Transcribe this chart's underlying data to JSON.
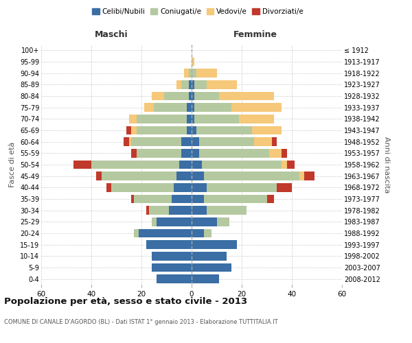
{
  "age_groups": [
    "0-4",
    "5-9",
    "10-14",
    "15-19",
    "20-24",
    "25-29",
    "30-34",
    "35-39",
    "40-44",
    "45-49",
    "50-54",
    "55-59",
    "60-64",
    "65-69",
    "70-74",
    "75-79",
    "80-84",
    "85-89",
    "90-94",
    "95-99",
    "100+"
  ],
  "birth_years": [
    "2008-2012",
    "2003-2007",
    "1998-2002",
    "1993-1997",
    "1988-1992",
    "1983-1987",
    "1978-1982",
    "1973-1977",
    "1968-1972",
    "1963-1967",
    "1958-1962",
    "1953-1957",
    "1948-1952",
    "1943-1947",
    "1938-1942",
    "1933-1937",
    "1928-1932",
    "1923-1927",
    "1918-1922",
    "1913-1917",
    "≤ 1912"
  ],
  "maschi": {
    "celibi": [
      14,
      16,
      16,
      18,
      21,
      14,
      9,
      8,
      7,
      6,
      5,
      4,
      4,
      2,
      2,
      2,
      1,
      1,
      0,
      0,
      0
    ],
    "coniugati": [
      0,
      0,
      0,
      0,
      2,
      2,
      8,
      15,
      25,
      30,
      35,
      18,
      20,
      20,
      20,
      13,
      10,
      3,
      1,
      0,
      0
    ],
    "vedovi": [
      0,
      0,
      0,
      0,
      0,
      0,
      0,
      0,
      0,
      0,
      0,
      0,
      1,
      2,
      3,
      4,
      5,
      2,
      2,
      0,
      0
    ],
    "divorziati": [
      0,
      0,
      0,
      0,
      0,
      0,
      1,
      1,
      2,
      2,
      7,
      2,
      2,
      2,
      0,
      0,
      0,
      0,
      0,
      0,
      0
    ]
  },
  "femmine": {
    "nubili": [
      11,
      16,
      14,
      18,
      5,
      10,
      6,
      5,
      6,
      5,
      4,
      3,
      3,
      2,
      1,
      1,
      1,
      1,
      0,
      0,
      0
    ],
    "coniugate": [
      0,
      0,
      0,
      0,
      3,
      5,
      16,
      25,
      28,
      38,
      32,
      28,
      22,
      22,
      18,
      15,
      10,
      5,
      2,
      0,
      0
    ],
    "vedove": [
      0,
      0,
      0,
      0,
      0,
      0,
      0,
      0,
      0,
      2,
      2,
      5,
      7,
      12,
      14,
      20,
      22,
      12,
      8,
      1,
      0
    ],
    "divorziate": [
      0,
      0,
      0,
      0,
      0,
      0,
      0,
      3,
      6,
      4,
      3,
      2,
      2,
      0,
      0,
      0,
      0,
      0,
      0,
      0,
      0
    ]
  },
  "colors": {
    "celibi": "#3a6ea5",
    "coniugati": "#b5c9a0",
    "vedovi": "#f5c87a",
    "divorziati": "#c0392b"
  },
  "xlim": 60,
  "title": "Popolazione per età, sesso e stato civile - 2013",
  "subtitle": "COMUNE DI CANALE D'AGORDO (BL) - Dati ISTAT 1° gennaio 2013 - Elaborazione TUTTITALIA.IT",
  "ylabel_left": "Fasce di età",
  "ylabel_right": "Anni di nascita",
  "legend_labels": [
    "Celibi/Nubili",
    "Coniugati/e",
    "Vedovi/e",
    "Divorziati/e"
  ],
  "maschi_label": "Maschi",
  "femmine_label": "Femmine",
  "xticks": [
    -60,
    -40,
    -20,
    0,
    20,
    40,
    60
  ],
  "xtick_labels": [
    "60",
    "40",
    "20",
    "0",
    "20",
    "40",
    "60"
  ]
}
